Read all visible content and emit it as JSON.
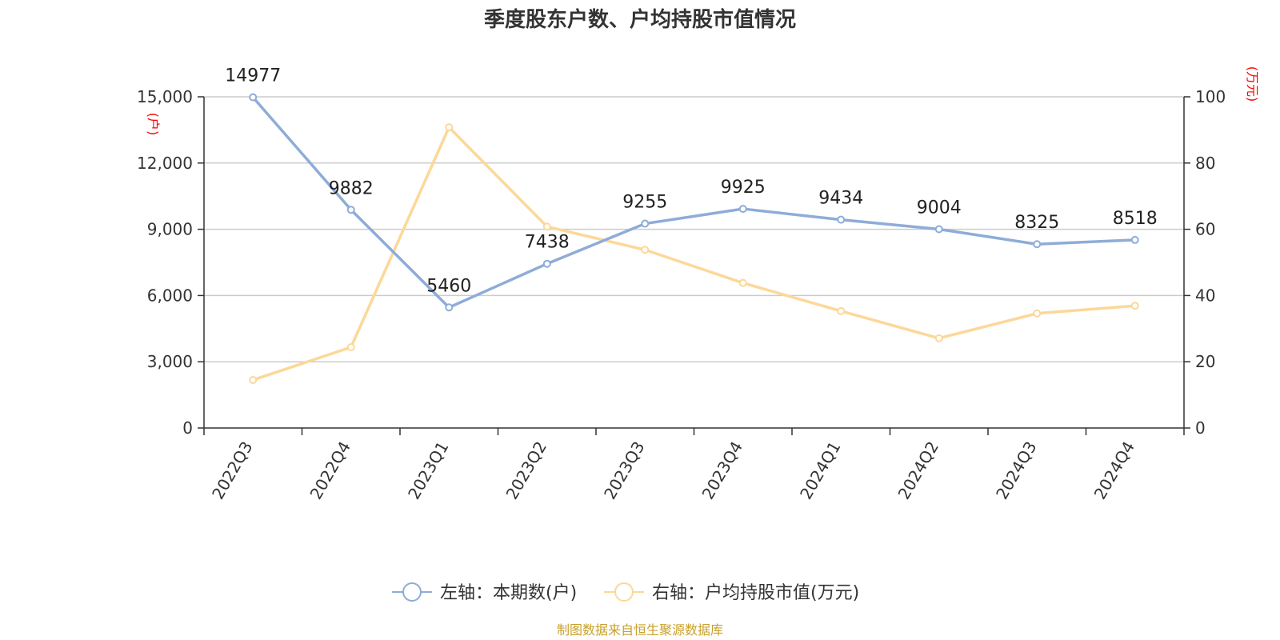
{
  "chart_data": {
    "type": "line",
    "title": "季度股东户数、户均持股市值情况",
    "categories": [
      "2022Q3",
      "2022Q4",
      "2023Q1",
      "2023Q2",
      "2023Q3",
      "2023Q4",
      "2024Q1",
      "2024Q2",
      "2024Q3",
      "2024Q4"
    ],
    "left_axis": {
      "unit": "(户)",
      "min": 0,
      "max": 15000,
      "ticks": [
        "0",
        "3,000",
        "6,000",
        "9,000",
        "12,000",
        "15,000"
      ]
    },
    "right_axis": {
      "unit": "(万元)",
      "min": 0,
      "max": 100,
      "ticks": [
        "0",
        "20",
        "40",
        "60",
        "80",
        "100"
      ]
    },
    "series": [
      {
        "name": "左轴：本期数(户)",
        "axis": "left",
        "color": "#8eacd8",
        "values": [
          14977,
          9882,
          5460,
          7438,
          9255,
          9925,
          9434,
          9004,
          8325,
          8518
        ],
        "labels": [
          "14977",
          "9882",
          "5460",
          "7438",
          "9255",
          "9925",
          "9434",
          "9004",
          "8325",
          "8518"
        ]
      },
      {
        "name": "右轴：户均持股市值(万元)",
        "axis": "right",
        "color": "#fcd898",
        "values": [
          14.5,
          24.4,
          90.8,
          60.8,
          53.8,
          43.8,
          35.3,
          27.1,
          34.6,
          36.9
        ]
      }
    ],
    "grid": true,
    "legend_position": "bottom"
  },
  "source": "制图数据来自恒生聚源数据库"
}
